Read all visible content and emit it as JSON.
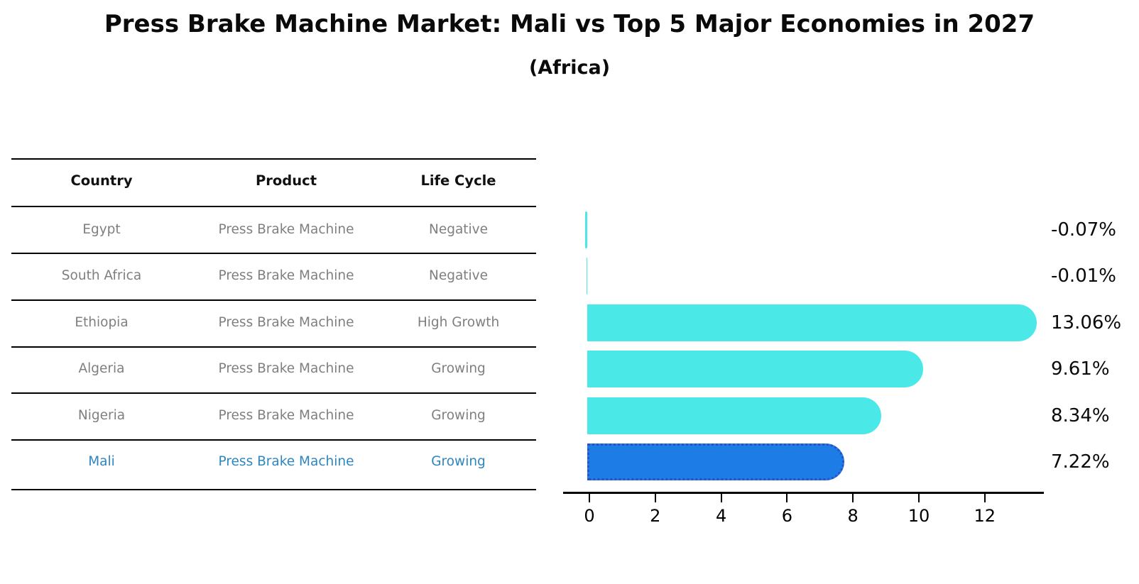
{
  "title": "Press Brake Machine Market: Mali vs Top 5 Major Economies in 2027",
  "subtitle": "(Africa)",
  "colors": {
    "bar_default": "#4AE8E6",
    "bar_highlight_fill": "#1E7CE6",
    "bar_highlight_border": "#2B50C8",
    "table_text": "#7F7F7F",
    "table_header_text": "#111111",
    "highlight_text": "#2E86C1",
    "axis": "#000000"
  },
  "table": {
    "headers": [
      "Country",
      "Product",
      "Life Cycle"
    ],
    "rows": [
      {
        "country": "Egypt",
        "product": "Press Brake Machine",
        "life_cycle": "Negative",
        "highlight": false
      },
      {
        "country": "South Africa",
        "product": "Press Brake Machine",
        "life_cycle": "Negative",
        "highlight": false
      },
      {
        "country": "Ethiopia",
        "product": "Press Brake Machine",
        "life_cycle": "High Growth",
        "highlight": false
      },
      {
        "country": "Algeria",
        "product": "Press Brake Machine",
        "life_cycle": "Growing",
        "highlight": false
      },
      {
        "country": "Nigeria",
        "product": "Press Brake Machine",
        "life_cycle": "Growing",
        "highlight": false
      },
      {
        "country": "Mali",
        "product": "Press Brake Machine",
        "life_cycle": "Growing",
        "highlight": true
      }
    ]
  },
  "chart_data": {
    "type": "bar",
    "orientation": "horizontal",
    "title": "Press Brake Machine Market: Mali vs Top 5 Major Economies in 2027 (Africa)",
    "categories": [
      "Egypt",
      "South Africa",
      "Ethiopia",
      "Algeria",
      "Nigeria",
      "Mali"
    ],
    "values": [
      -0.07,
      -0.01,
      13.06,
      9.61,
      8.34,
      7.22
    ],
    "value_labels": [
      "-0.07%",
      "-0.01%",
      "13.06%",
      "9.61%",
      "8.34%",
      "7.22%"
    ],
    "highlight_index": 5,
    "xlabel": "",
    "ylabel": "",
    "xticks": [
      0,
      2,
      4,
      6,
      8,
      10,
      12
    ],
    "xtick_labels": [
      "0",
      "2",
      "4",
      "6",
      "8",
      "10",
      "12"
    ],
    "xlim": [
      -0.8,
      13.8
    ],
    "grid": false,
    "legend": false
  }
}
